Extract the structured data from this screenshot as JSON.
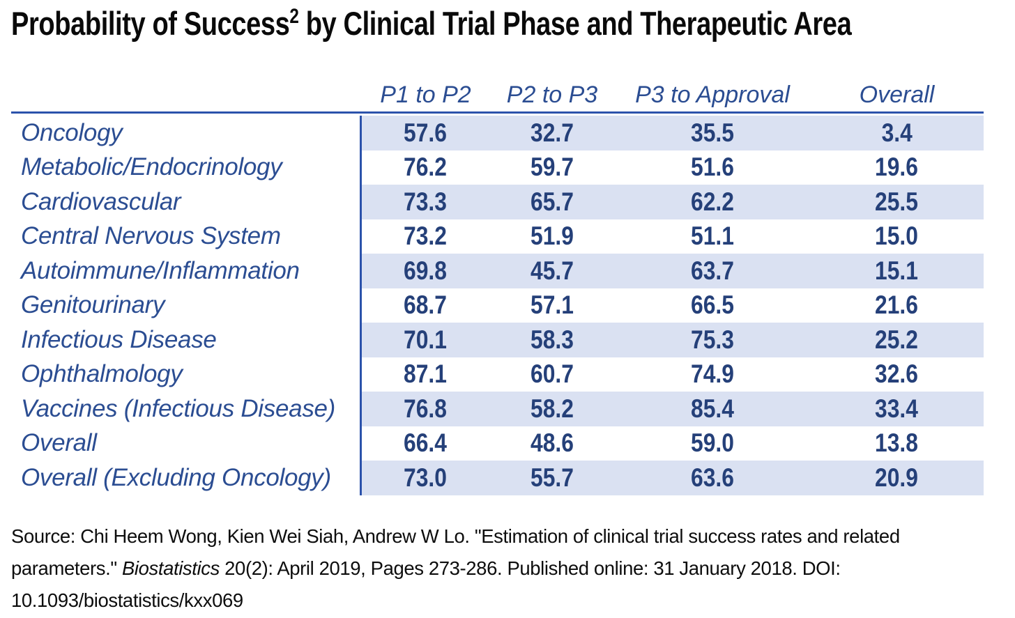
{
  "title": {
    "pre": "Probability of Success",
    "superscript": "2",
    "post": " by Clinical Trial Phase and Therapeutic Area"
  },
  "chart_data": {
    "type": "table",
    "title": "Probability of Success² by Clinical Trial Phase and Therapeutic Area",
    "columns": [
      "P1 to P2",
      "P2 to P3",
      "P3 to Approval",
      "Overall"
    ],
    "rows": [
      "Oncology",
      "Metabolic/Endocrinology",
      "Cardiovascular",
      "Central Nervous System",
      "Autoimmune/Inflammation",
      "Genitourinary",
      "Infectious Disease",
      "Ophthalmology",
      "Vaccines (Infectious Disease)",
      "Overall",
      "Overall (Excluding Oncology)"
    ],
    "values": [
      [
        57.6,
        32.7,
        35.5,
        3.4
      ],
      [
        76.2,
        59.7,
        51.6,
        19.6
      ],
      [
        73.3,
        65.7,
        62.2,
        25.5
      ],
      [
        73.2,
        51.9,
        51.1,
        15.0
      ],
      [
        69.8,
        45.7,
        63.7,
        15.1
      ],
      [
        68.7,
        57.1,
        66.5,
        21.6
      ],
      [
        70.1,
        58.3,
        75.3,
        25.2
      ],
      [
        87.1,
        60.7,
        74.9,
        32.6
      ],
      [
        76.8,
        58.2,
        85.4,
        33.4
      ],
      [
        66.4,
        48.6,
        59.0,
        13.8
      ],
      [
        73.0,
        55.7,
        63.6,
        20.9
      ]
    ],
    "banded_row_indices": [
      0,
      2,
      4,
      6,
      8,
      10
    ],
    "layout": {
      "banding": "alternate rows shaded, starting with first data row",
      "value_precision": 1
    }
  },
  "source": {
    "line1": "Source: Chi Heem Wong, Kien Wei Siah, Andrew W Lo. \"Estimation of clinical trial success rates and related",
    "line2_pre": "parameters.\" ",
    "line2_italic": "Biostatistics",
    "line2_post": " 20(2): April 2019, Pages 273-286. Published online: 31 January 2018. DOI:",
    "line3": "10.1093/biostatistics/kxx069"
  },
  "colors": {
    "title_text": "#0a0a0a",
    "header_label_blue": "#2b4d92",
    "value_navy": "#254079",
    "band_fill": "#dae1f2",
    "rule_blue": "#2b52ab",
    "source_text": "#0d0d0d",
    "background": "#ffffff"
  }
}
